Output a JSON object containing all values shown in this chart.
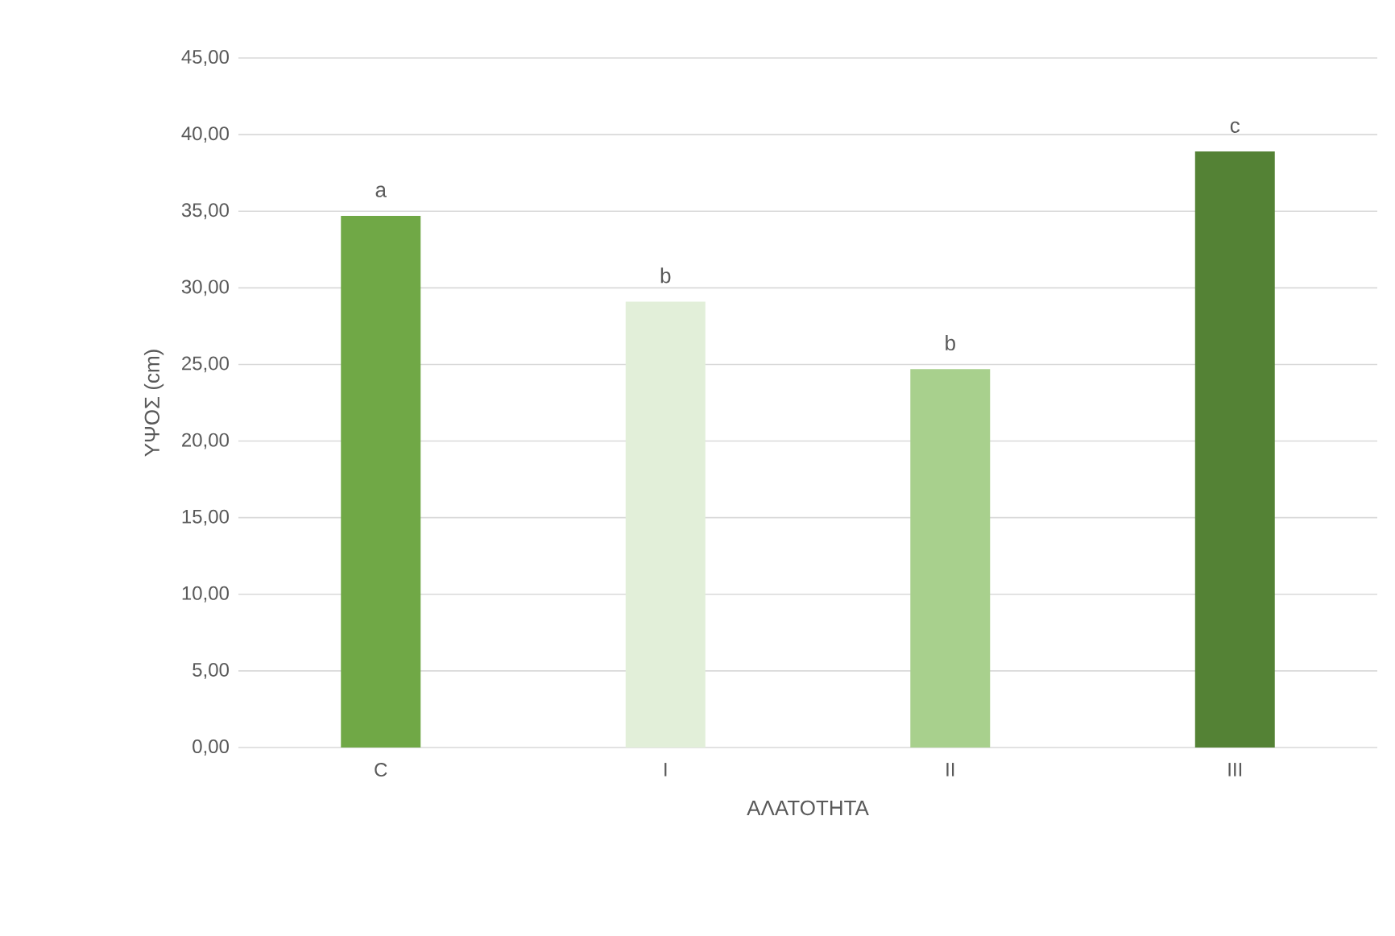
{
  "chart_data": {
    "type": "bar",
    "xlabel": "ΑΛΑΤΟΤΗΤΑ",
    "ylabel": "ΥΨΟΣ (cm)",
    "categories": [
      "C",
      "I",
      "II",
      "III"
    ],
    "values": [
      34.7,
      29.1,
      24.7,
      38.9
    ],
    "colors": [
      "#70a846",
      "#e2efd9",
      "#a8d08d",
      "#548235"
    ],
    "ylim": [
      0,
      45
    ],
    "yticks": [
      {
        "value": 0,
        "label": "0,00"
      },
      {
        "value": 5,
        "label": "5,00"
      },
      {
        "value": 10,
        "label": "10,00"
      },
      {
        "value": 15,
        "label": "15,00"
      },
      {
        "value": 20,
        "label": "20,00"
      },
      {
        "value": 25,
        "label": "25,00"
      },
      {
        "value": 30,
        "label": "30,00"
      },
      {
        "value": 35,
        "label": "35,00"
      },
      {
        "value": 40,
        "label": "40,00"
      },
      {
        "value": 45,
        "label": "45,00"
      }
    ],
    "grid": "y",
    "annotations": [
      {
        "text": "a",
        "x": "C",
        "y": 34.7
      },
      {
        "text": "b",
        "x": "I",
        "y": 29.1
      },
      {
        "text": "b",
        "x": "II",
        "y": 24.7
      },
      {
        "text": "c",
        "x": "III",
        "y": 38.9
      }
    ]
  }
}
